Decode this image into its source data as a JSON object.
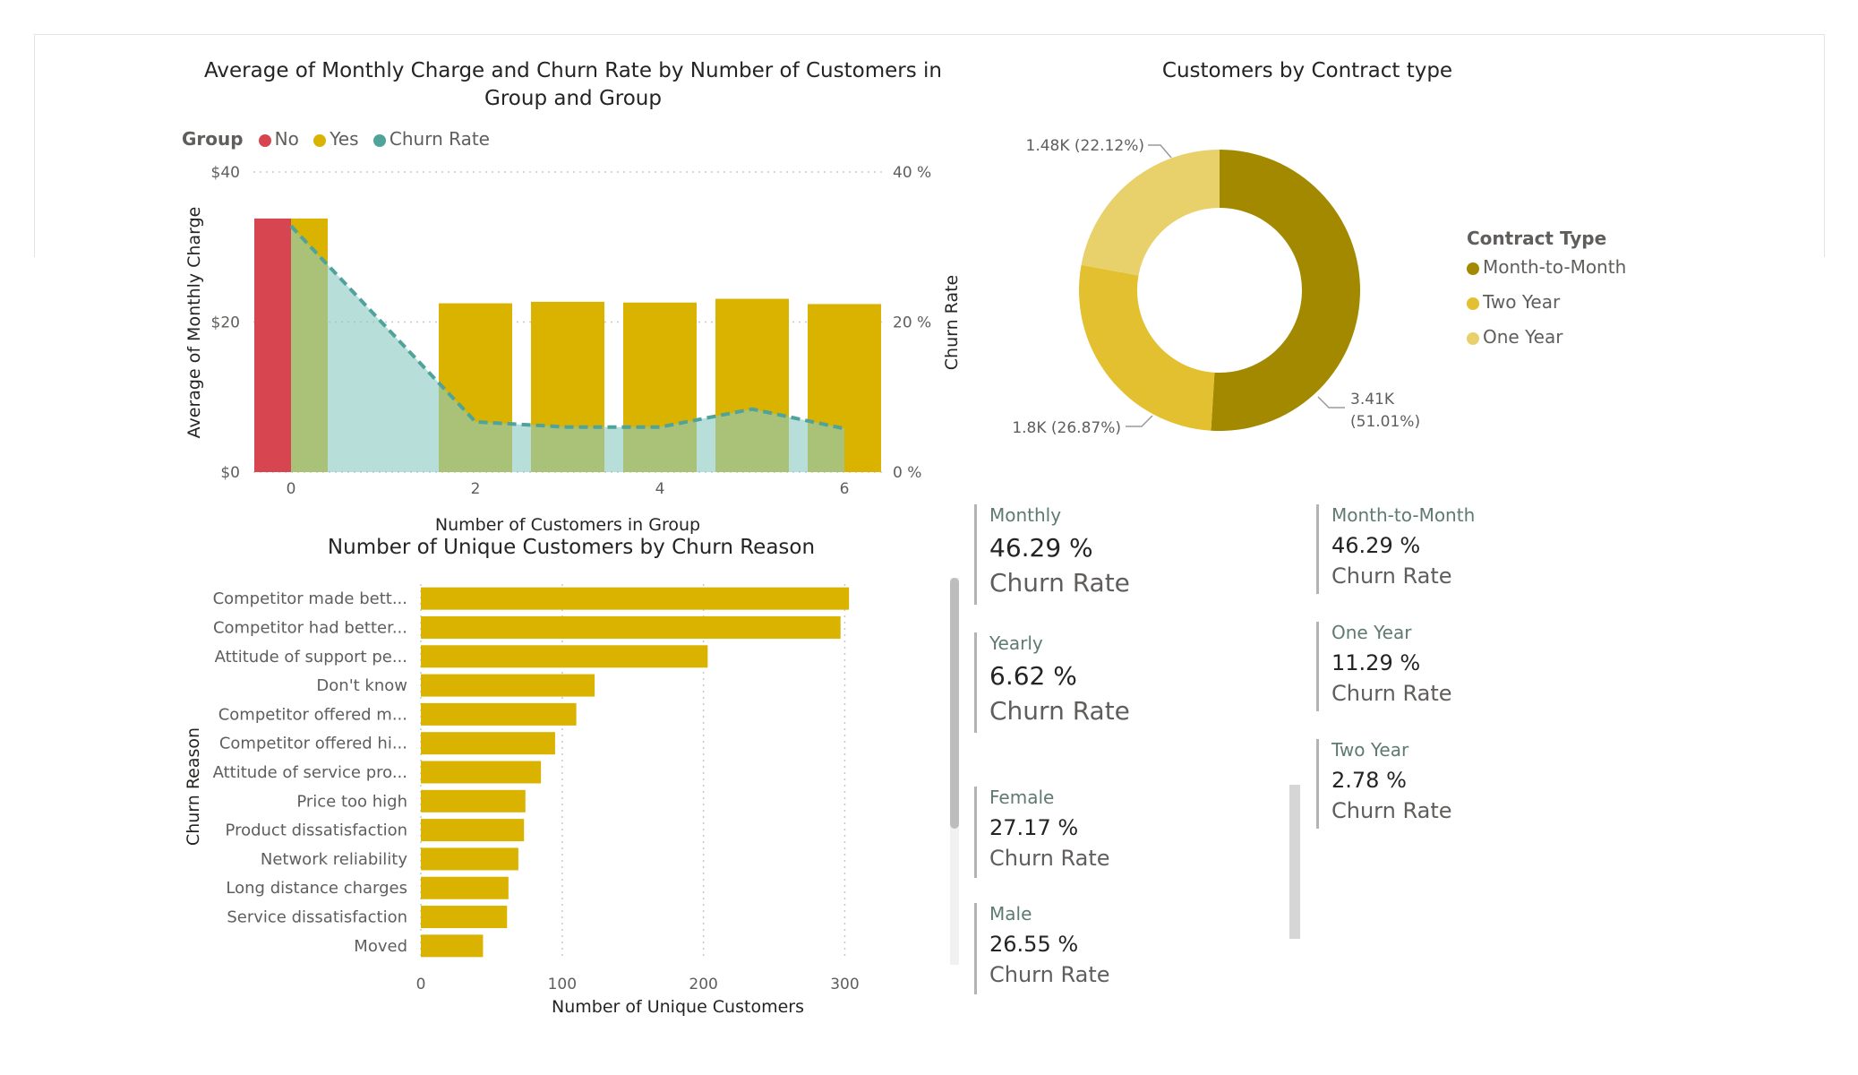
{
  "chart_data": [
    {
      "type": "combo-bar-line-area",
      "title": "Average of Monthly Charge and Churn Rate by Number of Customers in Group and Group",
      "legend": {
        "title": "Group",
        "items": [
          {
            "name": "No",
            "color": "#d64550"
          },
          {
            "name": "Yes",
            "color": "#d9b300"
          },
          {
            "name": "Churn Rate",
            "color": "#4fa39a"
          }
        ]
      },
      "xlabel": "Number of Customers in Group",
      "ylabel": "Average of Monthly Charge",
      "y2label": "Churn Rate",
      "x_ticks": [
        "0",
        "2",
        "4",
        "6"
      ],
      "y_ticks": [
        "$0",
        "$20",
        "$40"
      ],
      "y2_ticks": [
        "0 %",
        "20 %",
        "40 %"
      ],
      "ylim": [
        0,
        40
      ],
      "y2lim": [
        0,
        40
      ],
      "series": [
        {
          "name": "No",
          "x": [
            0
          ],
          "values": [
            33.8
          ]
        },
        {
          "name": "Yes",
          "x": [
            0,
            2,
            3,
            4,
            5,
            6
          ],
          "values": [
            33.8,
            22.5,
            22.7,
            22.6,
            23.1,
            22.4
          ]
        },
        {
          "name": "Churn Rate",
          "x": [
            0,
            2,
            3,
            4,
            5,
            6
          ],
          "values": [
            32.8,
            6.7,
            6.0,
            6.0,
            8.4,
            5.8
          ]
        }
      ]
    },
    {
      "type": "bar",
      "orientation": "horizontal",
      "title": "Number of Unique Customers by Churn Reason",
      "xlabel": "Number of Unique Customers",
      "ylabel": "Churn Reason",
      "xlim": [
        0,
        320
      ],
      "x_ticks": [
        "0",
        "100",
        "200",
        "300"
      ],
      "color": "#d9b300",
      "categories": [
        "Competitor made bett...",
        "Competitor had better...",
        "Attitude of support pe...",
        "Don't know",
        "Competitor offered m...",
        "Competitor offered hi...",
        "Attitude of service pro...",
        "Price too high",
        "Product dissatisfaction",
        "Network reliability",
        "Long distance charges",
        "Service dissatisfaction",
        "Moved"
      ],
      "values": [
        303,
        297,
        203,
        123,
        110,
        95,
        85,
        74,
        73,
        69,
        62,
        61,
        44
      ]
    },
    {
      "type": "pie",
      "title": "Customers by Contract type",
      "legend_title": "Contract Type",
      "categories": [
        "Month-to-Month",
        "Two Year",
        "One Year"
      ],
      "values": [
        3410,
        1800,
        1480
      ],
      "percentages": [
        51.01,
        26.87,
        22.12
      ],
      "colors": [
        "#a38900",
        "#e3c02f",
        "#e8d16a"
      ],
      "labels": {
        "month": [
          "3.41K",
          "(51.01%)"
        ],
        "two": "1.8K (26.87%)",
        "one": "1.48K (22.12%)"
      }
    }
  ],
  "cards": {
    "monthly": {
      "label": "Monthly",
      "value": "46.29 %",
      "sub": "Churn Rate"
    },
    "yearly": {
      "label": "Yearly",
      "value": "6.62 %",
      "sub": "Churn Rate"
    },
    "female": {
      "label": "Female",
      "value": "27.17 %",
      "sub": "Churn Rate"
    },
    "male": {
      "label": "Male",
      "value": "26.55 %",
      "sub": "Churn Rate"
    },
    "m2m": {
      "label": "Month-to-Month",
      "value": "46.29 %",
      "sub": "Churn Rate"
    },
    "oneyear": {
      "label": "One Year",
      "value": "11.29 %",
      "sub": "Churn Rate"
    },
    "twoyear": {
      "label": "Two Year",
      "value": "2.78 %",
      "sub": "Churn Rate"
    }
  }
}
